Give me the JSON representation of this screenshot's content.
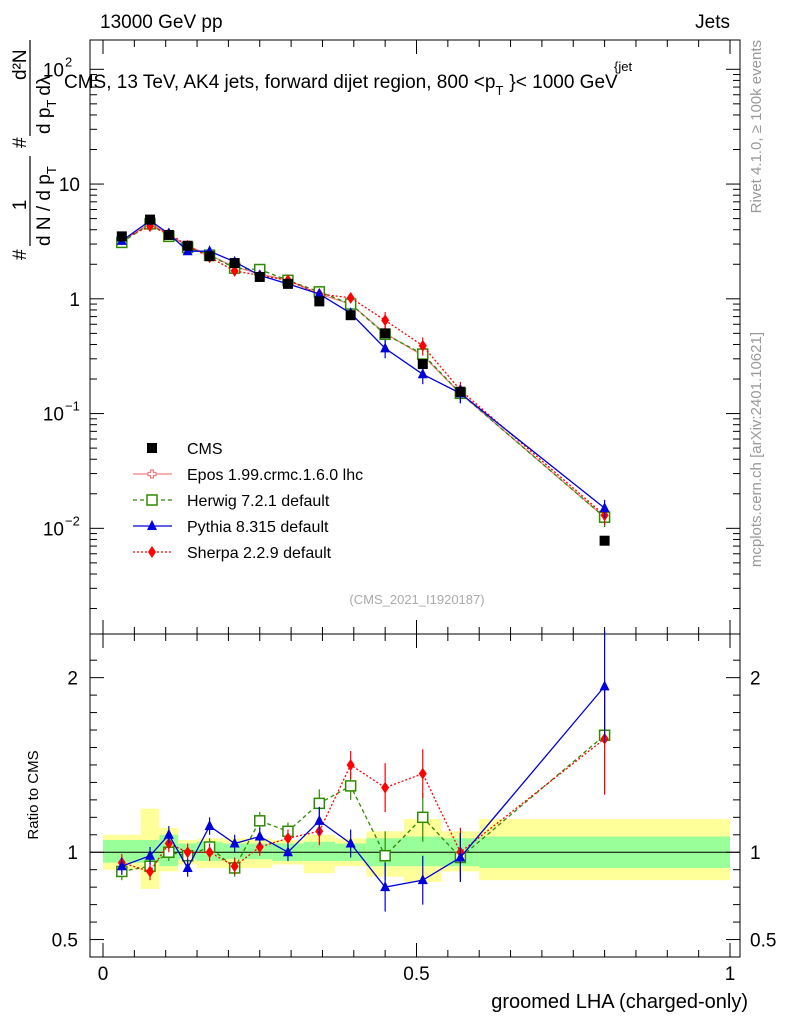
{
  "header": {
    "left": "13000 GeV pp",
    "right": "Jets"
  },
  "side_labels": {
    "rivet": "Rivet 4.1.0, ≥ 100k events",
    "mcplots": "mcplots.cern.ch [arXiv:2401.10621]"
  },
  "watermark": "(CMS_2021_I1920187)",
  "plot_title": "CMS, 13 TeV, AK4 jets, forward dijet region, 800 <p",
  "plot_title_sup": "{jet",
  "plot_title_sub": "T",
  "plot_title_end": "}< 1000 GeV",
  "colors": {
    "cms": "#000000",
    "epos": "#f08080",
    "herwig": "#2e8b00",
    "pythia": "#0000dd",
    "sherpa": "#ff0000",
    "band_inner": "#99ff99",
    "band_outer": "#ffff99"
  },
  "chart_data": [
    {
      "type": "scatter",
      "name": "main",
      "yscale": "log",
      "ylim": [
        0.0012,
        180
      ],
      "xlim": [
        -0.04,
        1.0
      ],
      "ylabel": "1 / (dN / dp_T) · d²N / (dp_T dλ)",
      "ylabel_parts": {
        "num1": "1",
        "den1": "d N / d p",
        "sub": "T",
        "num2": "d²N",
        "den2": "d p",
        "den2b": "dλ",
        "hash": "#"
      },
      "ytick_labels": {
        "1e-2": "10",
        "1e-1": "10",
        "1": "1",
        "10": "10",
        "1e2": "10"
      },
      "ytick_exps": {
        "1e-2": "−2",
        "1e-1": "−1",
        "1e2": "2"
      },
      "x": [
        0.03,
        0.075,
        0.105,
        0.135,
        0.17,
        0.21,
        0.25,
        0.295,
        0.345,
        0.395,
        0.45,
        0.51,
        0.57,
        0.8
      ],
      "series": [
        {
          "name": "CMS",
          "key": "cms",
          "marker": "square-filled",
          "values": [
            3.5,
            4.9,
            3.6,
            2.9,
            2.35,
            2.05,
            1.55,
            1.35,
            0.95,
            0.72,
            0.5,
            0.27,
            0.155,
            0.0078
          ]
        },
        {
          "name": "Epos 1.99.crmc.1.6.0 lhc",
          "key": "epos",
          "marker": "cross-open",
          "values": [
            3.15,
            4.6,
            3.6,
            2.9,
            2.4,
            1.9,
            1.65,
            1.45,
            1.1,
            0.9,
            0.5,
            0.32,
            0.15,
            0.0125
          ]
        },
        {
          "name": "Herwig 7.2.1 default",
          "key": "herwig",
          "marker": "square-open",
          "dash": "4,3",
          "values": [
            3.1,
            4.5,
            3.5,
            2.8,
            2.4,
            1.85,
            1.8,
            1.45,
            1.15,
            0.9,
            0.49,
            0.33,
            0.15,
            0.0125
          ]
        },
        {
          "name": "Pythia 8.315 default",
          "key": "pythia",
          "marker": "triangle-filled",
          "values": [
            3.2,
            4.8,
            3.7,
            2.6,
            2.6,
            2.1,
            1.6,
            1.35,
            1.1,
            0.75,
            0.37,
            0.22,
            0.15,
            0.015
          ]
        },
        {
          "name": "Sherpa 2.2.9 default",
          "key": "sherpa",
          "marker": "diamond-filled",
          "dash": "2,2",
          "values": [
            3.3,
            4.3,
            3.7,
            2.9,
            2.3,
            1.75,
            1.6,
            1.45,
            1.1,
            1.02,
            0.65,
            0.39,
            0.16,
            0.013
          ]
        }
      ]
    },
    {
      "type": "scatter",
      "name": "ratio",
      "ylim": [
        0.4,
        2.25
      ],
      "ylabel": "Ratio to CMS",
      "xlabel": "groomed LHA (charged-only)",
      "ytick_labels": [
        "0.5",
        "1",
        "2"
      ],
      "yticks": [
        0.5,
        1,
        2
      ],
      "xtick_labels": [
        "0",
        "0.5",
        "1"
      ],
      "xticks": [
        0,
        0.5,
        1
      ],
      "x": [
        0.03,
        0.075,
        0.105,
        0.135,
        0.17,
        0.21,
        0.25,
        0.295,
        0.345,
        0.395,
        0.45,
        0.51,
        0.57,
        0.8
      ],
      "band_edges": [
        0.0,
        0.06,
        0.09,
        0.12,
        0.15,
        0.19,
        0.23,
        0.27,
        0.32,
        0.37,
        0.42,
        0.48,
        0.54,
        0.6,
        1.0
      ],
      "band_inner": [
        [
          0.94,
          1.07
        ],
        [
          0.94,
          1.07
        ],
        [
          0.92,
          1.1
        ],
        [
          0.96,
          1.05
        ],
        [
          0.95,
          1.06
        ],
        [
          0.96,
          1.05
        ],
        [
          0.96,
          1.05
        ],
        [
          0.95,
          1.05
        ],
        [
          0.95,
          1.06
        ],
        [
          0.95,
          1.05
        ],
        [
          0.92,
          1.08
        ],
        [
          0.92,
          1.09
        ],
        [
          0.92,
          1.08
        ],
        [
          0.91,
          1.09
        ]
      ],
      "band_outer": [
        [
          0.9,
          1.1
        ],
        [
          0.79,
          1.25
        ],
        [
          0.89,
          1.14
        ],
        [
          0.93,
          1.07
        ],
        [
          0.91,
          1.08
        ],
        [
          0.91,
          1.08
        ],
        [
          0.91,
          1.08
        ],
        [
          0.93,
          1.07
        ],
        [
          0.88,
          1.1
        ],
        [
          0.92,
          1.08
        ],
        [
          0.86,
          1.12
        ],
        [
          0.83,
          1.19
        ],
        [
          0.89,
          1.12
        ],
        [
          0.84,
          1.19
        ]
      ],
      "series": [
        {
          "key": "herwig",
          "marker": "square-open",
          "dash": "4,3",
          "values": [
            0.89,
            0.92,
            1.0,
            0.98,
            1.03,
            0.91,
            1.18,
            1.12,
            1.28,
            1.38,
            0.98,
            1.2,
            0.97,
            1.67
          ]
        },
        {
          "key": "sherpa",
          "marker": "diamond-filled",
          "dash": "2,2",
          "values": [
            0.94,
            0.89,
            1.05,
            1.0,
            1.0,
            0.92,
            1.03,
            1.08,
            1.12,
            1.5,
            1.37,
            1.45,
            1.0,
            1.65
          ]
        },
        {
          "key": "pythia",
          "marker": "triangle-filled",
          "values": [
            0.92,
            0.98,
            1.1,
            0.91,
            1.15,
            1.05,
            1.09,
            1.0,
            1.18,
            1.05,
            0.8,
            0.84,
            0.97,
            1.95
          ]
        }
      ]
    }
  ]
}
